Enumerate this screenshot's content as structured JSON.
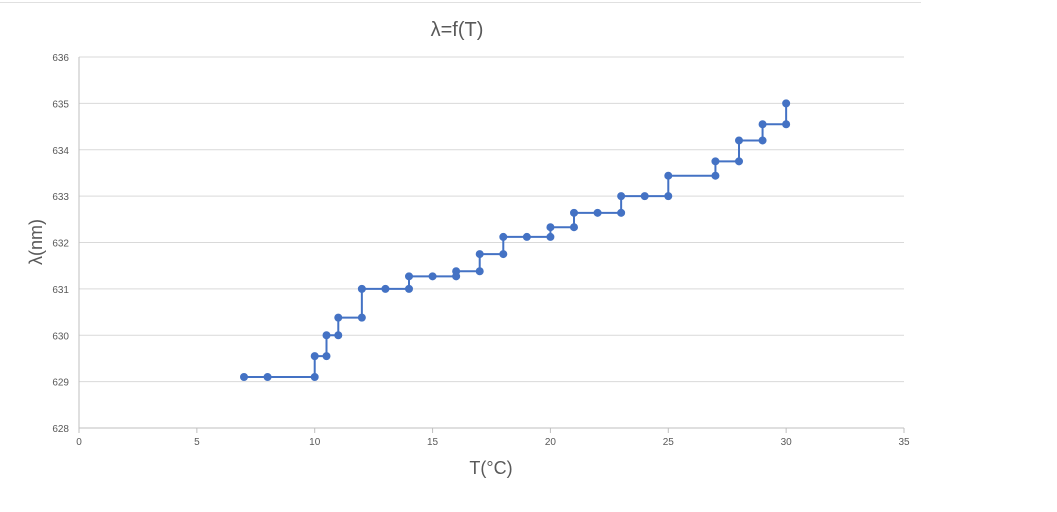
{
  "chart_data": {
    "type": "scatter",
    "title": "λ=f(T)",
    "xlabel": "T(°C)",
    "ylabel": "λ(nm)",
    "xlim": [
      0,
      35
    ],
    "ylim": [
      628,
      636
    ],
    "xticks": [
      "0",
      "5",
      "10",
      "15",
      "20",
      "25",
      "30",
      "35"
    ],
    "yticks": [
      "628",
      "629",
      "630",
      "631",
      "632",
      "633",
      "634",
      "635",
      "636"
    ],
    "grid": "horizontal",
    "series": [
      {
        "color": "#4472C4",
        "marker": "circle",
        "line": "straight",
        "points": [
          [
            7,
            629.1
          ],
          [
            8,
            629.1
          ],
          [
            10,
            629.1
          ],
          [
            10,
            629.55
          ],
          [
            10.5,
            629.55
          ],
          [
            10.5,
            630.0
          ],
          [
            11,
            630.0
          ],
          [
            11,
            630.38
          ],
          [
            12,
            630.38
          ],
          [
            12,
            631.0
          ],
          [
            13,
            631.0
          ],
          [
            14,
            631.0
          ],
          [
            14,
            631.27
          ],
          [
            15,
            631.27
          ],
          [
            16,
            631.27
          ],
          [
            16,
            631.38
          ],
          [
            17,
            631.38
          ],
          [
            17,
            631.75
          ],
          [
            18,
            631.75
          ],
          [
            18,
            632.12
          ],
          [
            19,
            632.12
          ],
          [
            20,
            632.12
          ],
          [
            20,
            632.33
          ],
          [
            21,
            632.33
          ],
          [
            21,
            632.64
          ],
          [
            22,
            632.64
          ],
          [
            23,
            632.64
          ],
          [
            23,
            633.0
          ],
          [
            24,
            633.0
          ],
          [
            25,
            633.0
          ],
          [
            25,
            633.44
          ],
          [
            27,
            633.44
          ],
          [
            27,
            633.75
          ],
          [
            28,
            633.75
          ],
          [
            28,
            634.2
          ],
          [
            29,
            634.2
          ],
          [
            29,
            634.55
          ],
          [
            30,
            634.55
          ],
          [
            30,
            635.0
          ]
        ]
      }
    ]
  }
}
